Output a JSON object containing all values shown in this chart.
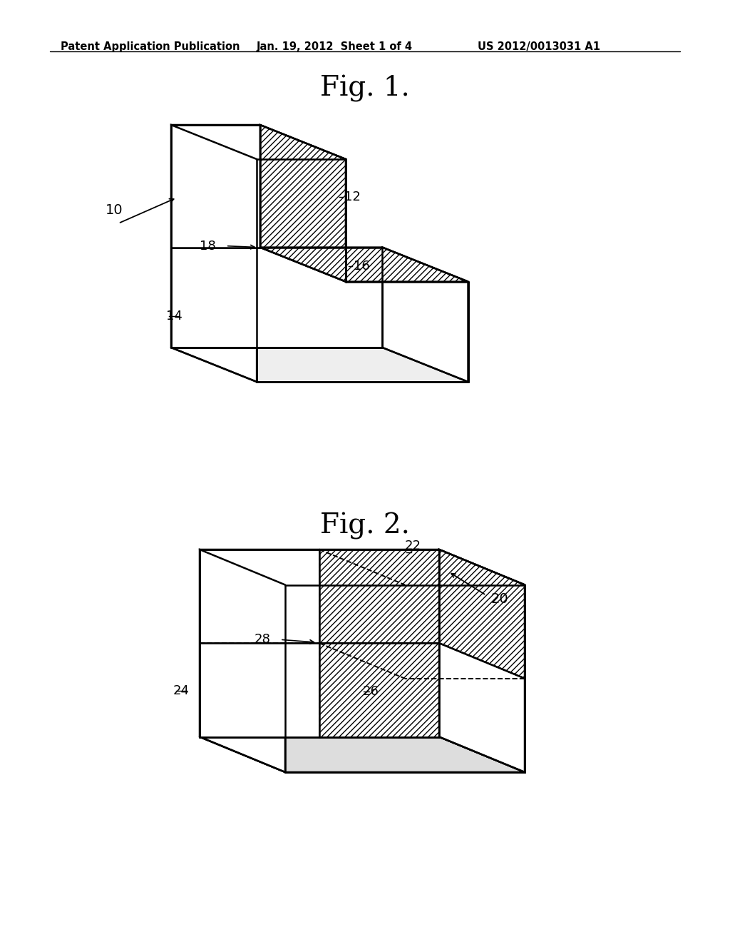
{
  "background_color": "#ffffff",
  "header_text": "Patent Application Publication",
  "header_date": "Jan. 19, 2012  Sheet 1 of 4",
  "header_patent": "US 2012/0013031 A1",
  "fig1_title": "Fig. 1.",
  "fig2_title": "Fig. 2.",
  "label_10": "10",
  "label_12": "12",
  "label_14": "14",
  "label_16": "16",
  "label_18": "18",
  "label_20": "20",
  "label_22": "22",
  "label_24": "24",
  "label_26": "26",
  "label_28": "28",
  "line_color": "#000000",
  "line_width": 1.8
}
